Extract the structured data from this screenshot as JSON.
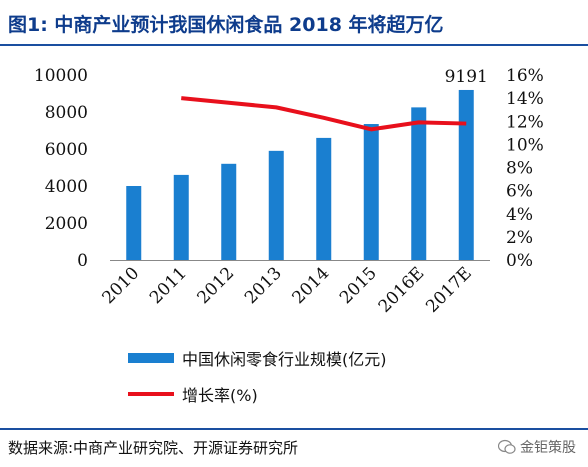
{
  "figure": {
    "title": "图1:   中商产业预计我国休闲食品 2018 年将超万亿",
    "source": "数据来源:中商产业研究院、开源证券研究所",
    "watermark": "金钜策股"
  },
  "colors": {
    "bar": "#1a7fd0",
    "line": "#e8101c",
    "text": "#111111",
    "title": "#0e3c8c"
  },
  "chart_data": {
    "type": "bar",
    "categories": [
      "2010",
      "2011",
      "2012",
      "2013",
      "2014",
      "2015",
      "2016E",
      "2017E"
    ],
    "series": [
      {
        "name": "中国休闲零食行业规模(亿元)",
        "type": "bar",
        "axis": "left",
        "values": [
          4000,
          4600,
          5200,
          5900,
          6600,
          7350,
          8250,
          9191
        ]
      },
      {
        "name": "增长率(%)",
        "type": "line",
        "axis": "right",
        "values": [
          null,
          14.0,
          13.6,
          13.2,
          12.3,
          11.3,
          11.9,
          11.8
        ]
      }
    ],
    "data_labels": [
      {
        "category": "2017E",
        "text": "9191"
      }
    ],
    "y_left": {
      "range": [
        0,
        10000
      ],
      "ticks": [
        "0",
        "2000",
        "4000",
        "6000",
        "8000",
        "10000"
      ]
    },
    "y_right": {
      "range": [
        0,
        16
      ],
      "ticks": [
        "0%",
        "2%",
        "4%",
        "6%",
        "8%",
        "10%",
        "12%",
        "14%",
        "16%"
      ]
    },
    "grid": false,
    "legend_position": "bottom"
  }
}
